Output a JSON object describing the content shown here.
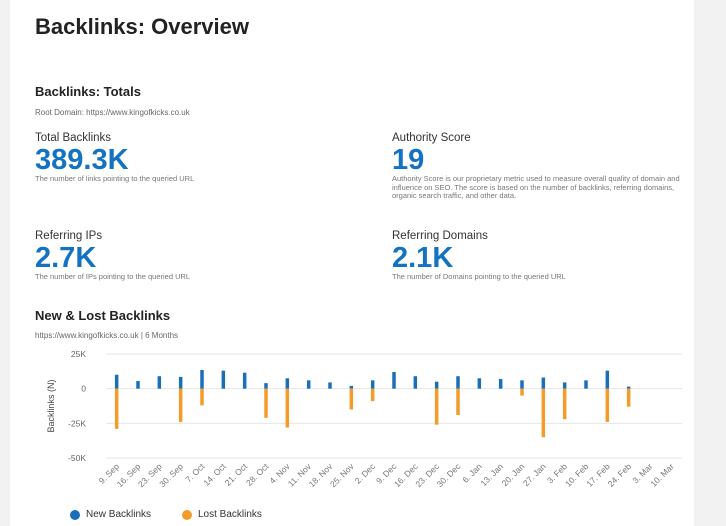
{
  "page_title": "Backlinks: Overview",
  "totals": {
    "heading": "Backlinks: Totals",
    "root_domain": "Root Domain: https://www.kingofkicks.co.uk"
  },
  "metrics": {
    "total_backlinks": {
      "label": "Total Backlinks",
      "value": "389.3K",
      "desc": "The number of links pointing to the queried URL"
    },
    "authority_score": {
      "label": "Authority Score",
      "value": "19",
      "desc": "Authority Score is our proprietary metric used to measure overall quality of domain and influence on SEO. The score is based on the number of backlinks, referring domains, organic search traffic, and other data."
    },
    "referring_ips": {
      "label": "Referring IPs",
      "value": "2.7K",
      "desc": "The number of IPs pointing to the queried URL"
    },
    "referring_domains": {
      "label": "Referring Domains",
      "value": "2.1K",
      "desc": "The number of Domains pointing to the queried URL"
    }
  },
  "chart_section": {
    "heading": "New & Lost Backlinks",
    "subtitle": "https://www.kingofkicks.co.uk | 6 Months"
  },
  "colors": {
    "new": "#1a6fb8",
    "lost": "#f39c2a"
  },
  "chart_data": {
    "type": "bar",
    "title": "New & Lost Backlinks",
    "ylabel": "Backlinks (N)",
    "xlabel": "",
    "ylim": [
      -50000,
      25000
    ],
    "yticks": [
      25000,
      0,
      -25000,
      -50000
    ],
    "ytick_labels": [
      "25K",
      "0",
      "-25K",
      "-50K"
    ],
    "categories": [
      "9. Sep",
      "16. Sep",
      "23. Sep",
      "30. Sep",
      "7. Oct",
      "14. Oct",
      "21. Oct",
      "28. Oct",
      "4. Nov",
      "11. Nov",
      "18. Nov",
      "25. Nov",
      "2. Dec",
      "9. Dec",
      "16. Dec",
      "23. Dec",
      "30. Dec",
      "6. Jan",
      "13. Jan",
      "20. Jan",
      "27. Jan",
      "3. Feb",
      "10. Feb",
      "17. Feb",
      "24. Feb",
      "3. Mar",
      "10. Mar"
    ],
    "series": [
      {
        "name": "New Backlinks",
        "values": [
          10000,
          5500,
          9000,
          8500,
          13500,
          13000,
          11500,
          4000,
          7500,
          6000,
          4500,
          2000,
          6000,
          12000,
          9000,
          5000,
          9000,
          7500,
          7000,
          6000,
          8000,
          4500,
          6000,
          13000,
          1500,
          0,
          0
        ]
      },
      {
        "name": "Lost Backlinks",
        "values": [
          -29000,
          0,
          0,
          -24000,
          -12000,
          0,
          0,
          -21000,
          -28000,
          0,
          0,
          -15000,
          -9000,
          0,
          0,
          -26000,
          -19000,
          0,
          0,
          -5000,
          -35000,
          -22000,
          0,
          -24000,
          -13000,
          0,
          0
        ]
      }
    ],
    "legend": [
      "New Backlinks",
      "Lost Backlinks"
    ],
    "grid": true
  }
}
